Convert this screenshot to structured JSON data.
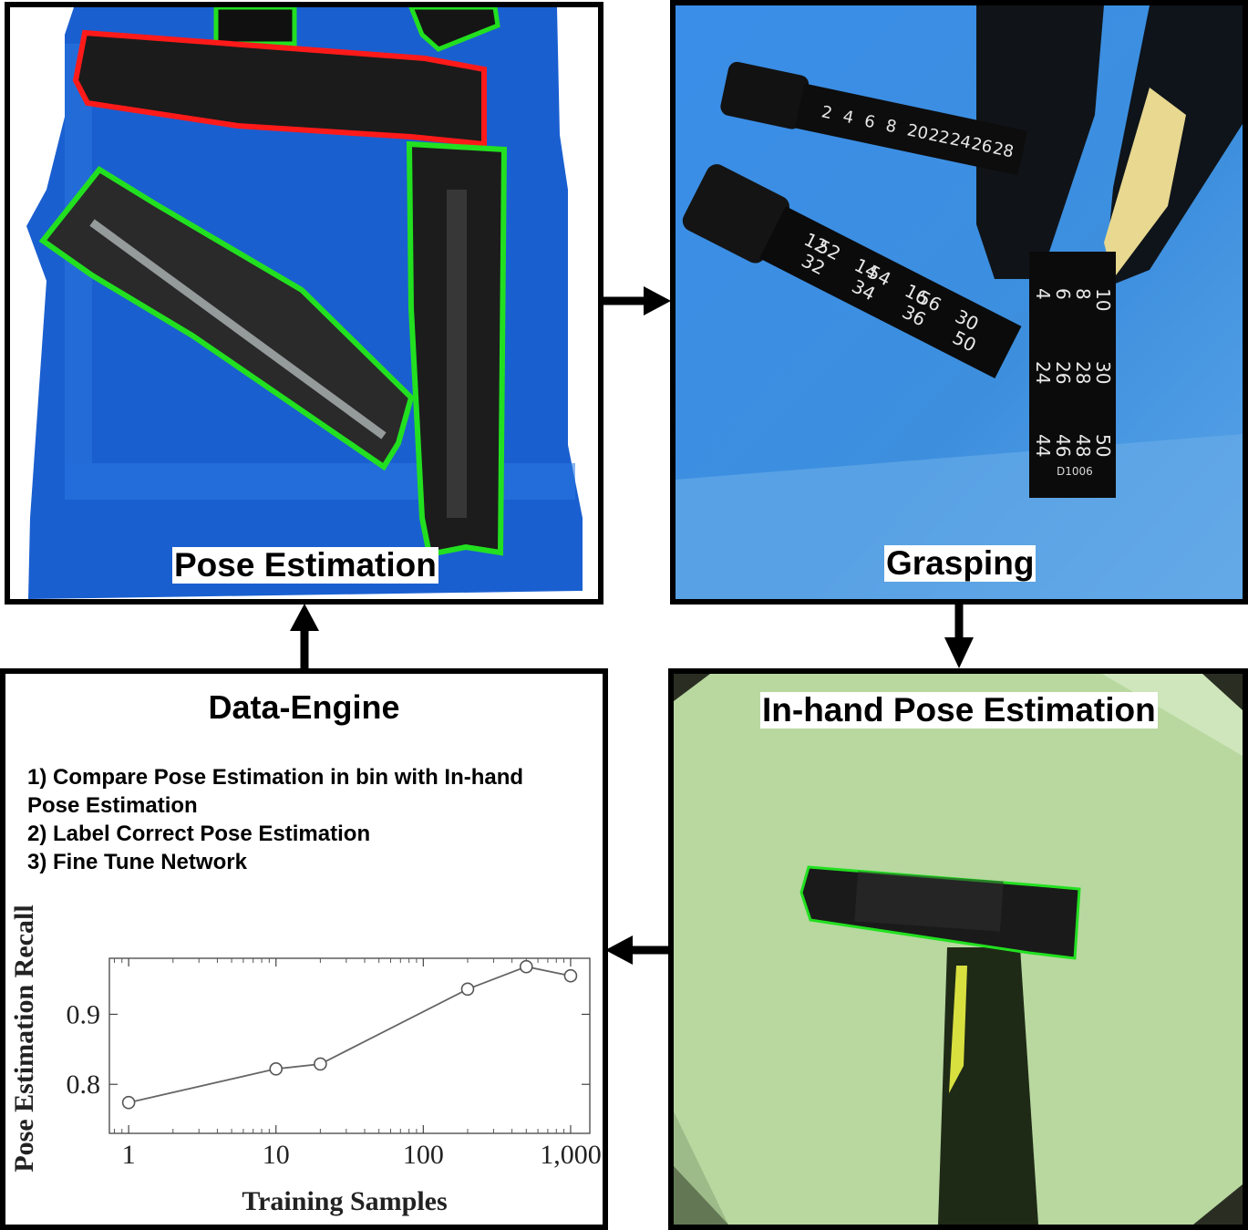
{
  "panels": {
    "pose_estimation": {
      "caption": "Pose Estimation"
    },
    "grasping": {
      "caption": "Grasping",
      "dial_numbers_left": [
        "12",
        "14",
        "16",
        "30",
        "32",
        "34",
        "36",
        "50",
        "52",
        "54",
        "56"
      ],
      "dial_numbers_right": [
        "4",
        "6",
        "8",
        "10",
        "24",
        "26",
        "28",
        "30",
        "44",
        "46",
        "48",
        "50"
      ],
      "top_dial_numbers": [
        "2",
        "4",
        "6",
        "8",
        "20",
        "22",
        "24",
        "26",
        "28"
      ],
      "part_label": "D1006"
    },
    "inhand": {
      "caption": "In-hand Pose Estimation"
    },
    "data_engine": {
      "title": "Data-Engine",
      "steps": [
        "1) Compare Pose Estimation in bin with In-hand Pose Estimation",
        "2) Label Correct Pose Estimation",
        "3) Fine Tune Network"
      ]
    }
  },
  "colors": {
    "bin_blue": "#1a5fd0",
    "accept_outline": "#22e020",
    "reject_outline": "#ff1a1a",
    "inhand_background": "#b8d8a0",
    "panel_border": "#000000"
  },
  "chart_data": {
    "type": "line",
    "x_scale": "log",
    "x": [
      1,
      10,
      20,
      200,
      500,
      1000
    ],
    "y": [
      0.774,
      0.822,
      0.829,
      0.936,
      0.968,
      0.955
    ],
    "xlabel": "Training Samples",
    "ylabel": "Pose Estimation Recall",
    "xlim": [
      0.74,
      1350
    ],
    "ylim": [
      0.73,
      0.98
    ],
    "xticks": [
      1,
      10,
      100,
      1000
    ],
    "xtick_labels": [
      "1",
      "10",
      "100",
      "1,000"
    ],
    "yticks": [
      0.8,
      0.9
    ],
    "ytick_labels": [
      "0.8",
      "0.9"
    ],
    "marker": "open-circle",
    "grid": false
  }
}
